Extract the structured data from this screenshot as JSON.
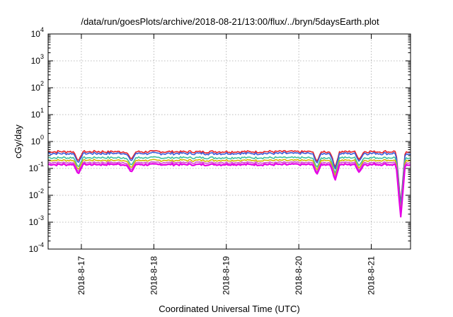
{
  "chart_data": {
    "type": "line",
    "title": "/data/run/goesPlots/archive/2018-08-21/13:00/flux/../bryn/5daysEarth.plot",
    "xlabel": "Coordinated Universal Time (UTC)",
    "ylabel": "cGy/day",
    "yscale": "log",
    "ylim": [
      0.0001,
      10000
    ],
    "xlim": [
      "2018-08-16 13:00",
      "2018-08-21 13:00"
    ],
    "grid": true,
    "legend": "none",
    "x_tick_labels": [
      "2018-8-17",
      "2018-8-18",
      "2018-8-19",
      "2018-8-20",
      "2018-8-21"
    ],
    "y_ticks": [
      {
        "value": 0.0001,
        "base": "10",
        "exp": "-4"
      },
      {
        "value": 0.001,
        "base": "10",
        "exp": "-3"
      },
      {
        "value": 0.01,
        "base": "10",
        "exp": "-2"
      },
      {
        "value": 0.1,
        "base": "10",
        "exp": "-1"
      },
      {
        "value": 1,
        "base": "10",
        "exp": "0"
      },
      {
        "value": 10,
        "base": "10",
        "exp": "1"
      },
      {
        "value": 100,
        "base": "10",
        "exp": "2"
      },
      {
        "value": 1000,
        "base": "10",
        "exp": "3"
      },
      {
        "value": 10000,
        "base": "10",
        "exp": "4"
      }
    ],
    "series": [
      {
        "color": "#e8232a",
        "level": 0.42,
        "noise": 0.1
      },
      {
        "color": "#3a5bd9",
        "level": 0.36,
        "noise": 0.1
      },
      {
        "color": "#3fbfa0",
        "level": 0.25,
        "noise": 0.08
      },
      {
        "color": "#d4b800",
        "level": 0.2,
        "noise": 0.07
      },
      {
        "color": "#d24fd0",
        "level": 0.165,
        "noise": 0.07
      },
      {
        "color": "#e600e6",
        "level": 0.14,
        "noise": 0.08
      }
    ],
    "dropouts": [
      {
        "x": "2018-08-16 23:00",
        "min": 0.06
      },
      {
        "x": "2018-08-17 16:30",
        "min": 0.07
      },
      {
        "x": "2018-08-20 06:00",
        "min": 0.06
      },
      {
        "x": "2018-08-20 12:00",
        "min": 0.035
      },
      {
        "x": "2018-08-20 20:00",
        "min": 0.07
      },
      {
        "x": "2018-08-21 09:45",
        "min": 0.0015
      }
    ]
  }
}
